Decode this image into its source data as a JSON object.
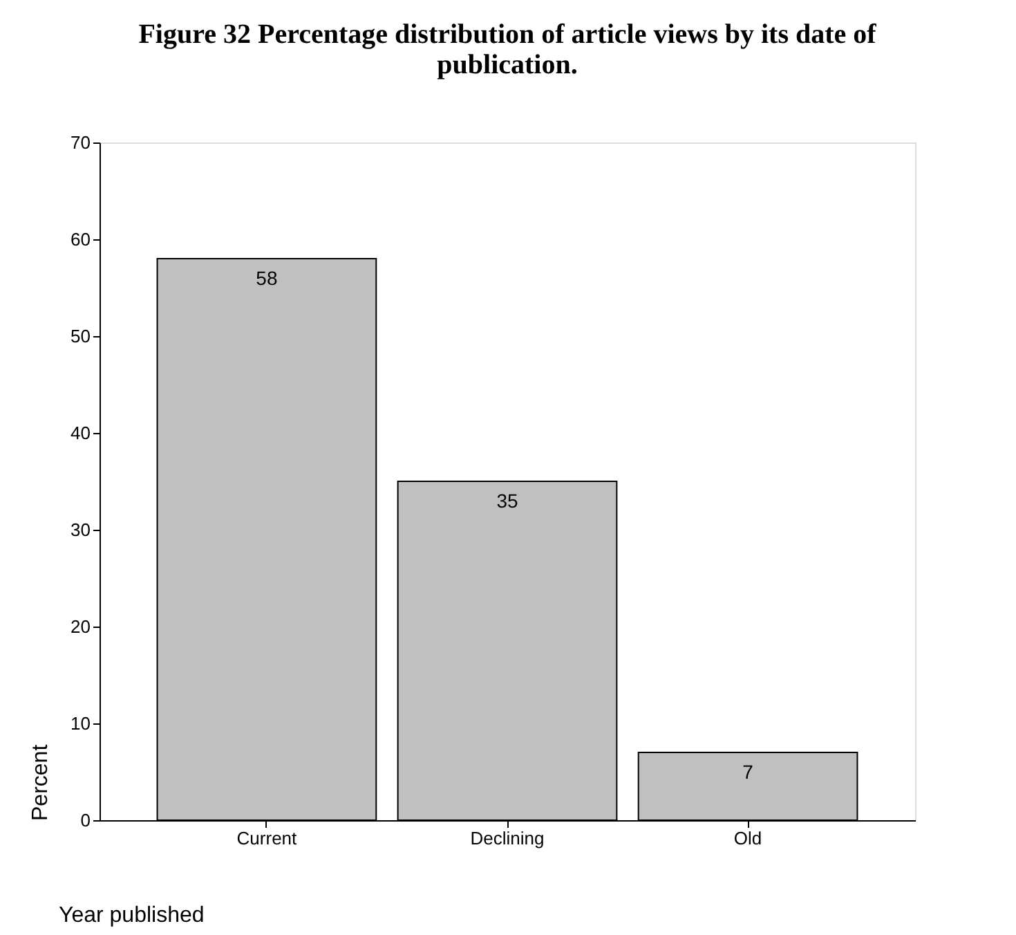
{
  "chart_data": {
    "type": "bar",
    "title": "Figure 32 Percentage distribution of article views by its date of publication.",
    "xlabel": "Year published",
    "ylabel": "Percent",
    "categories": [
      "Current",
      "Declining",
      "Old"
    ],
    "values": [
      58,
      35,
      7
    ],
    "color": "#c0c0c0",
    "data_labels": true,
    "ylim": [
      0,
      70
    ],
    "yticks": [
      0,
      10,
      20,
      30,
      40,
      50,
      60,
      70
    ],
    "grid": false
  }
}
